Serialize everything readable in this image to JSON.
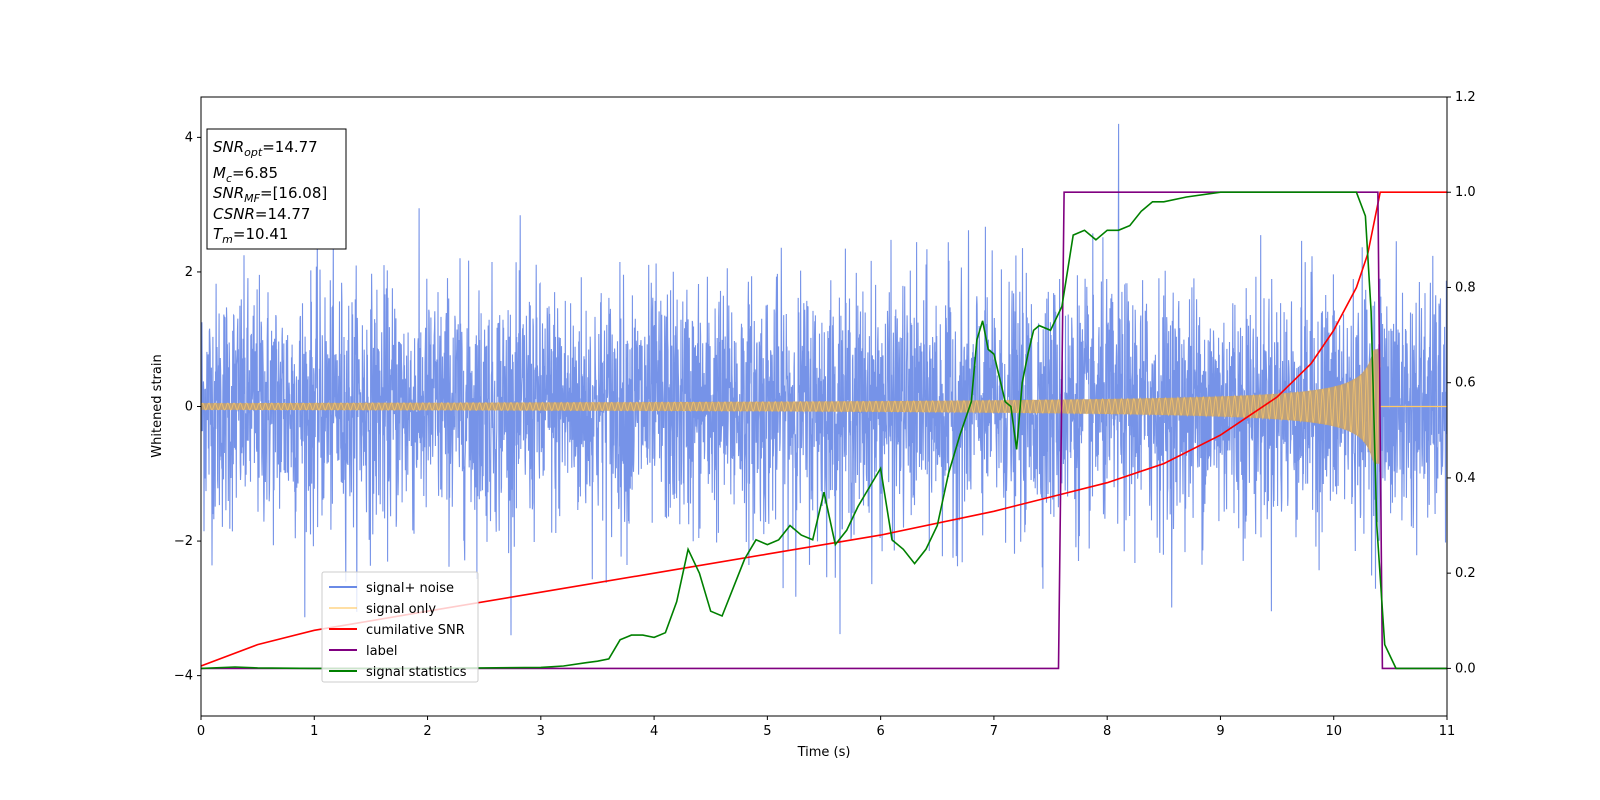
{
  "chart_data": {
    "type": "line",
    "xlabel": "Time (s)",
    "ylabel": "Whitened strain",
    "xlim": [
      0,
      11
    ],
    "ylim": [
      -4.6,
      4.6
    ],
    "ylim_right": [
      -0.1,
      1.2
    ],
    "x_ticks": [
      0,
      1,
      2,
      3,
      4,
      5,
      6,
      7,
      8,
      9,
      10,
      11
    ],
    "y_ticks": [
      -4,
      -2,
      0,
      2,
      4
    ],
    "y_right_ticks": [
      0.0,
      0.2,
      0.4,
      0.6,
      0.8,
      1.0,
      1.2
    ],
    "x_tick_labels": [
      "0",
      "1",
      "2",
      "3",
      "4",
      "5",
      "6",
      "7",
      "8",
      "9",
      "10",
      "11"
    ],
    "y_tick_labels": [
      "−4",
      "−2",
      "0",
      "2",
      "4"
    ],
    "y_right_tick_labels": [
      "0.0",
      "0.2",
      "0.4",
      "0.6",
      "0.8",
      "1.0",
      "1.2"
    ],
    "grid": false,
    "legend_position": "lower-left",
    "annotation": {
      "lines": [
        {
          "sym": "SNR",
          "sub": "opt",
          "value": "=14.77"
        },
        {
          "sym": "M",
          "sub": "c",
          "value": "=6.85"
        },
        {
          "sym": "SNR",
          "sub": "MF",
          "value": "=[16.08]"
        },
        {
          "sym": "CSNR",
          "sub": "",
          "value": "=14.77"
        },
        {
          "sym": "T",
          "sub": "m",
          "value": "=10.41"
        }
      ]
    },
    "series": [
      {
        "name": "signal+ noise",
        "axis": "left",
        "color": "#6a8ae6",
        "description_points": "noise envelope approx ±1.5 typical, peaks to ±3",
        "envelope": {
          "x": [
            0,
            11
          ],
          "typical_amplitude": 1.5,
          "peak_amplitude": 3.0,
          "max_spike": 4.2
        }
      },
      {
        "name": "signal only",
        "axis": "left",
        "color": "#ffc966",
        "chirp": {
          "t_start": 0,
          "t_merger": 10.41,
          "amp_start": 0.05,
          "amp_peak": 0.85
        }
      },
      {
        "name": "cumilative SNR",
        "axis": "right",
        "color": "#ff0000",
        "x": [
          0,
          0.5,
          1,
          2,
          3,
          4,
          5,
          6,
          7,
          7.5,
          8,
          8.5,
          9,
          9.5,
          9.8,
          10,
          10.2,
          10.3,
          10.41,
          11
        ],
        "y": [
          0.005,
          0.05,
          0.08,
          0.12,
          0.16,
          0.2,
          0.24,
          0.28,
          0.33,
          0.36,
          0.39,
          0.43,
          0.49,
          0.57,
          0.64,
          0.71,
          0.8,
          0.87,
          1.0,
          1.0
        ]
      },
      {
        "name": "label",
        "axis": "right",
        "color": "#800080",
        "x": [
          0,
          7.57,
          7.62,
          10.39,
          10.43,
          11
        ],
        "y": [
          0,
          0,
          1,
          1,
          0,
          0
        ]
      },
      {
        "name": "signal statistics",
        "axis": "right",
        "color": "#008000",
        "x": [
          0,
          0.3,
          0.5,
          1,
          2,
          3,
          3.2,
          3.4,
          3.5,
          3.6,
          3.7,
          3.8,
          3.9,
          4.0,
          4.1,
          4.2,
          4.3,
          4.4,
          4.5,
          4.6,
          4.7,
          4.8,
          4.9,
          5.0,
          5.1,
          5.2,
          5.3,
          5.4,
          5.5,
          5.6,
          5.7,
          5.8,
          5.9,
          6.0,
          6.1,
          6.2,
          6.3,
          6.4,
          6.5,
          6.6,
          6.7,
          6.8,
          6.85,
          6.9,
          6.95,
          7.0,
          7.05,
          7.1,
          7.15,
          7.2,
          7.25,
          7.3,
          7.35,
          7.4,
          7.5,
          7.6,
          7.7,
          7.8,
          7.9,
          8.0,
          8.1,
          8.2,
          8.3,
          8.4,
          8.5,
          8.7,
          9.0,
          9.5,
          10.0,
          10.2,
          10.28,
          10.33,
          10.38,
          10.45,
          10.55,
          11
        ],
        "y": [
          0,
          0.003,
          0.001,
          0,
          0,
          0.002,
          0.005,
          0.012,
          0.015,
          0.02,
          0.06,
          0.07,
          0.07,
          0.065,
          0.075,
          0.14,
          0.25,
          0.2,
          0.12,
          0.11,
          0.17,
          0.23,
          0.27,
          0.26,
          0.27,
          0.3,
          0.28,
          0.27,
          0.37,
          0.26,
          0.29,
          0.34,
          0.38,
          0.42,
          0.27,
          0.25,
          0.22,
          0.25,
          0.3,
          0.41,
          0.49,
          0.56,
          0.69,
          0.73,
          0.67,
          0.66,
          0.61,
          0.56,
          0.55,
          0.46,
          0.6,
          0.66,
          0.71,
          0.72,
          0.71,
          0.76,
          0.91,
          0.92,
          0.9,
          0.92,
          0.92,
          0.93,
          0.96,
          0.98,
          0.98,
          0.99,
          1.0,
          1.0,
          1.0,
          1.0,
          0.95,
          0.75,
          0.3,
          0.05,
          0.0,
          0.0
        ]
      }
    ]
  }
}
